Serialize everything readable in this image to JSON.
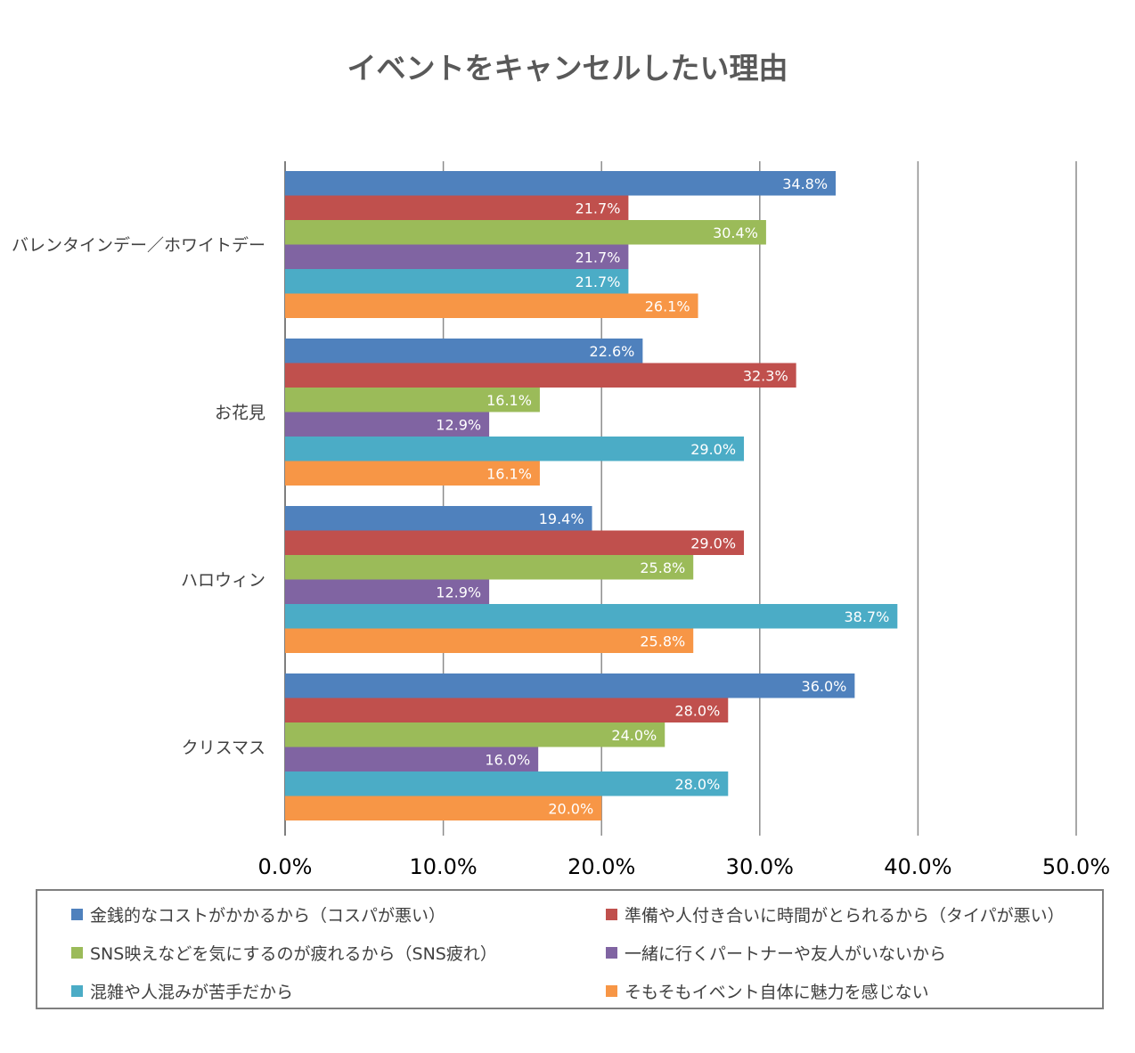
{
  "chart_data": {
    "type": "bar",
    "orientation": "horizontal",
    "title": "イベントをキャンセルしたい理由",
    "categories": [
      "バレンタインデー／ホワイトデー",
      "お花見",
      "ハロウィン",
      "クリスマス"
    ],
    "series": [
      {
        "name": "金銭的なコストがかかるから（コスパが悪い）",
        "color": "#4f81bd",
        "values": [
          34.8,
          22.6,
          19.4,
          36.0
        ],
        "labels": [
          "34.8%",
          "22.6%",
          "19.4%",
          "36.0%"
        ]
      },
      {
        "name": "準備や人付き合いに時間がとられるから（タイパが悪い）",
        "color": "#c0504d",
        "values": [
          21.7,
          32.3,
          29.0,
          28.0
        ],
        "labels": [
          "21.7%",
          "32.3%",
          "29.0%",
          "28.0%"
        ]
      },
      {
        "name": "SNS映えなどを気にするのが疲れるから（SNS疲れ）",
        "color": "#9bbb59",
        "values": [
          30.4,
          16.1,
          25.8,
          24.0
        ],
        "labels": [
          "30.4%",
          "16.1%",
          "25.8%",
          "24.0%"
        ]
      },
      {
        "name": "一緒に行くパートナーや友人がいないから",
        "color": "#8064a2",
        "values": [
          21.7,
          12.9,
          12.9,
          16.0
        ],
        "labels": [
          "21.7%",
          "12.9%",
          "12.9%",
          "16.0%"
        ]
      },
      {
        "name": "混雑や人混みが苦手だから",
        "color": "#4bacc6",
        "values": [
          21.7,
          29.0,
          38.7,
          28.0
        ],
        "labels": [
          "21.7%",
          "29.0%",
          "38.7%",
          "28.0%"
        ]
      },
      {
        "name": "そもそもイベント自体に魅力を感じない",
        "color": "#f79646",
        "values": [
          26.1,
          16.1,
          25.8,
          20.0
        ],
        "labels": [
          "26.1%",
          "16.1%",
          "25.8%",
          "20.0%"
        ]
      }
    ],
    "xlim": [
      0,
      50
    ],
    "xticks": [
      0,
      10,
      20,
      30,
      40,
      50
    ],
    "xtick_labels": [
      "0.0%",
      "10.0%",
      "20.0%",
      "30.0%",
      "40.0%",
      "50.0%"
    ],
    "grid": true,
    "legend_position": "bottom"
  }
}
